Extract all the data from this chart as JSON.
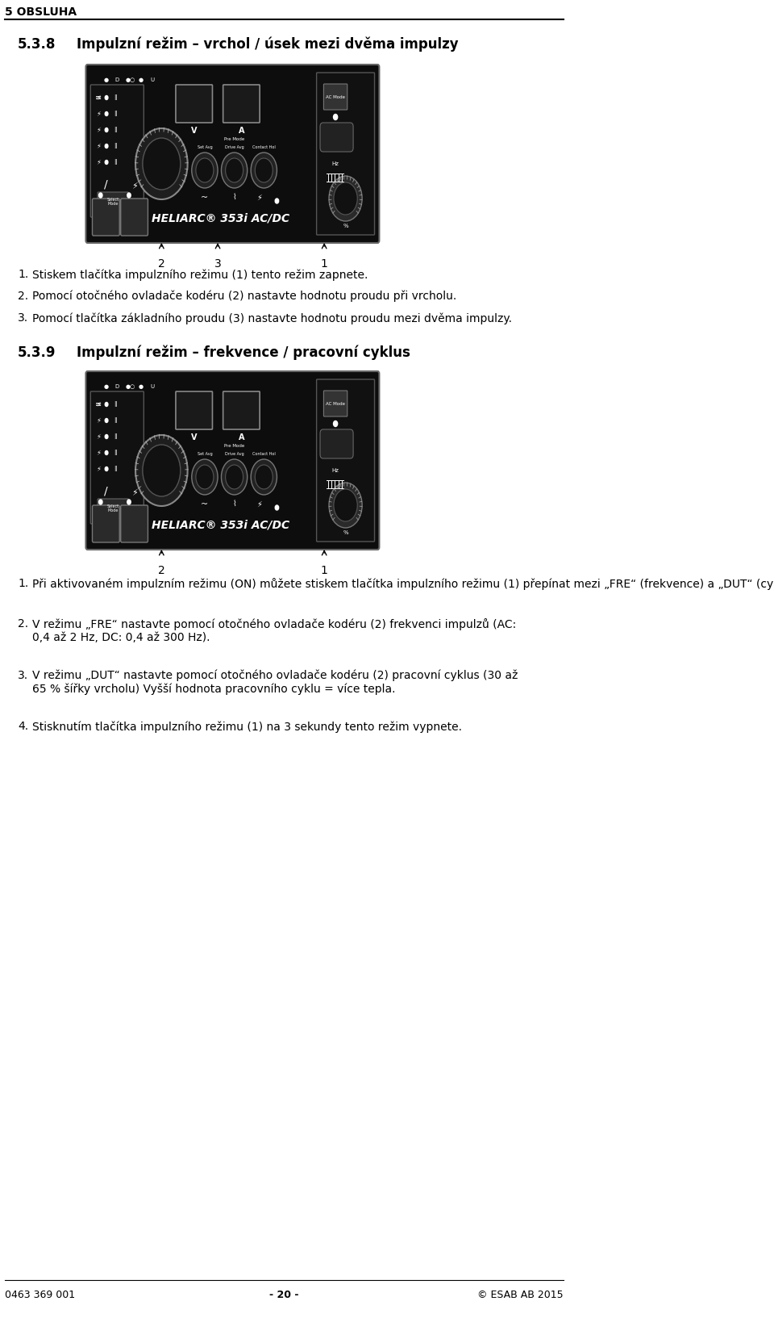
{
  "page_header": "5 OBSLUHA",
  "section1_number": "5.3.8",
  "section1_title": "Impulzní režim – vrchol / úsek mezi dvěma impulzy",
  "section2_number": "5.3.9",
  "section2_title": "Impulzní režim – frekvence / pracovní cyklus",
  "item1_label": "1.",
  "item1_text": "Stiskem tlačítka impulzního režimu (1) tento režim zapnete.",
  "item2_label": "2.",
  "item2_text": "Pomocí otočného ovladače kodéru (2) nastavte hodnotu proudu při vrcholu.",
  "item3_label": "3.",
  "item3_text": "Pomocí tlačítka základního proudu (3) nastavte hodnotu proudu mezi dvěma impulzy.",
  "item4_label": "1.",
  "item4_text": "Při aktivovaném impulzním režimu (ON) můžete stiskem tlačítka impulzního režimu (1) přepínat mezi „FRE“ (frekvence) a „DUT“ (cyklus).",
  "item5_label": "2.",
  "item5_text": "V režimu „FRE“ nastavte pomocí otočného ovladače kodéru (2) frekvenci impulzů (AC:\n0,4 až 2 Hz, DC: 0,4 až 300 Hz).",
  "item6_label": "3.",
  "item6_text": "V režimu „DUT“ nastavte pomocí otočného ovladače kodéru (2) pracovní cyklus (30 až\n65 % šířky vrcholu) Vyšší hodnota pracovního cyklu = více tepla.",
  "item7_label": "4.",
  "item7_text": "Stisknutím tlačítka impulzního režimu (1) na 3 sekundy tento režim vypnete.",
  "footer_left": "0463 369 001",
  "footer_center": "- 20 -",
  "footer_right": "© ESAB AB 2015"
}
